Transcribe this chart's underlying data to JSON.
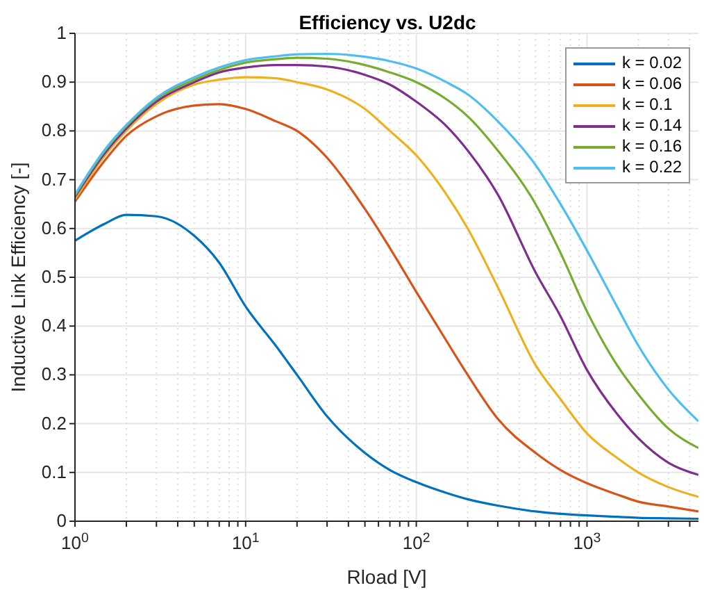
{
  "chart_data": {
    "type": "line",
    "title": "Efficiency vs. U2dc",
    "xlabel": "Rload [V]",
    "ylabel": "Inductive Link Efficiency [-]",
    "x": [
      1,
      1.5,
      2,
      3,
      5,
      7,
      10,
      15,
      20,
      30,
      50,
      70,
      100,
      150,
      200,
      300,
      500,
      700,
      1000,
      1500,
      2000,
      3000,
      4500
    ],
    "series": [
      {
        "name": "k = 0.02",
        "color": "#0072bd",
        "values": [
          0.575,
          0.61,
          0.628,
          0.625,
          0.585,
          0.53,
          0.44,
          0.36,
          0.3,
          0.215,
          0.14,
          0.105,
          0.08,
          0.058,
          0.045,
          0.032,
          0.02,
          0.015,
          0.012,
          0.009,
          0.007,
          0.006,
          0.005
        ]
      },
      {
        "name": "k = 0.06",
        "color": "#d95319",
        "values": [
          0.655,
          0.74,
          0.79,
          0.83,
          0.852,
          0.855,
          0.845,
          0.82,
          0.8,
          0.745,
          0.64,
          0.56,
          0.47,
          0.37,
          0.3,
          0.21,
          0.14,
          0.105,
          0.078,
          0.055,
          0.04,
          0.03,
          0.02
        ]
      },
      {
        "name": "k = 0.1",
        "color": "#edb120",
        "values": [
          0.66,
          0.75,
          0.8,
          0.855,
          0.895,
          0.905,
          0.91,
          0.908,
          0.9,
          0.885,
          0.845,
          0.8,
          0.75,
          0.67,
          0.6,
          0.48,
          0.32,
          0.25,
          0.18,
          0.13,
          0.1,
          0.07,
          0.05
        ]
      },
      {
        "name": "k = 0.14",
        "color": "#7e2f8e",
        "values": [
          0.665,
          0.755,
          0.805,
          0.86,
          0.9,
          0.92,
          0.93,
          0.935,
          0.935,
          0.932,
          0.915,
          0.895,
          0.86,
          0.81,
          0.76,
          0.67,
          0.51,
          0.42,
          0.31,
          0.22,
          0.17,
          0.12,
          0.095
        ]
      },
      {
        "name": "k = 0.16",
        "color": "#77ac30",
        "values": [
          0.668,
          0.76,
          0.81,
          0.865,
          0.905,
          0.925,
          0.94,
          0.947,
          0.95,
          0.948,
          0.935,
          0.92,
          0.9,
          0.865,
          0.83,
          0.76,
          0.65,
          0.55,
          0.43,
          0.32,
          0.26,
          0.19,
          0.15
        ]
      },
      {
        "name": "k = 0.22",
        "color": "#4dbeee",
        "values": [
          0.67,
          0.762,
          0.812,
          0.868,
          0.91,
          0.93,
          0.945,
          0.953,
          0.957,
          0.958,
          0.952,
          0.943,
          0.928,
          0.9,
          0.875,
          0.82,
          0.73,
          0.65,
          0.555,
          0.44,
          0.36,
          0.27,
          0.205
        ]
      }
    ],
    "log": "x",
    "xlim": [
      1,
      4500
    ],
    "xticks": [
      {
        "value": 1,
        "label": "10$^{0}$"
      },
      {
        "value": 2,
        "label": null
      },
      {
        "value": 3,
        "label": null
      },
      {
        "value": 4,
        "label": null
      },
      {
        "value": 5,
        "label": null
      },
      {
        "value": 6,
        "label": null
      },
      {
        "value": 7,
        "label": null
      },
      {
        "value": 8,
        "label": null
      },
      {
        "value": 9,
        "label": null
      },
      {
        "value": 10,
        "label": "10$^{1}$"
      },
      {
        "value": 20,
        "label": null
      },
      {
        "value": 30,
        "label": null
      },
      {
        "value": 40,
        "label": null
      },
      {
        "value": 50,
        "label": null
      },
      {
        "value": 60,
        "label": null
      },
      {
        "value": 70,
        "label": null
      },
      {
        "value": 80,
        "label": null
      },
      {
        "value": 90,
        "label": null
      },
      {
        "value": 100,
        "label": "10$^{2}$"
      },
      {
        "value": 200,
        "label": null
      },
      {
        "value": 300,
        "label": null
      },
      {
        "value": 400,
        "label": null
      },
      {
        "value": 500,
        "label": null
      },
      {
        "value": 600,
        "label": null
      },
      {
        "value": 700,
        "label": null
      },
      {
        "value": 800,
        "label": null
      },
      {
        "value": 900,
        "label": null
      },
      {
        "value": 1000,
        "label": "10$^{3}$"
      },
      {
        "value": 2000,
        "label": null
      },
      {
        "value": 3000,
        "label": null
      },
      {
        "value": 4000,
        "label": null
      }
    ],
    "ylim": [
      0,
      1
    ],
    "yticks": [
      0,
      0.1,
      0.2,
      0.3,
      0.4,
      0.5,
      0.6,
      0.7,
      0.8,
      0.9,
      1
    ],
    "grid": true,
    "legend": "top right",
    "marker": "none",
    "line_style": "solid"
  }
}
